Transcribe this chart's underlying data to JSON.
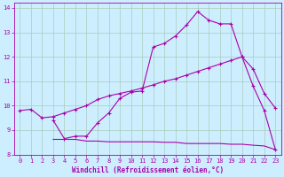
{
  "xlabel": "Windchill (Refroidissement éolien,°C)",
  "bg_color": "#cceeff",
  "grid_color": "#aaccbb",
  "line_color": "#aa00aa",
  "xlim": [
    -0.5,
    23.5
  ],
  "ylim": [
    8,
    14.2
  ],
  "xticks": [
    0,
    1,
    2,
    3,
    4,
    5,
    6,
    7,
    8,
    9,
    10,
    11,
    12,
    13,
    14,
    15,
    16,
    17,
    18,
    19,
    20,
    21,
    22,
    23
  ],
  "yticks": [
    8,
    9,
    10,
    11,
    12,
    13,
    14
  ],
  "line1_x": [
    0,
    1,
    2,
    3,
    4,
    5,
    6,
    7,
    8,
    9,
    10,
    11,
    12,
    13,
    14,
    15,
    16,
    17,
    18,
    19,
    20,
    21,
    22,
    23
  ],
  "line1_y": [
    9.8,
    9.85,
    9.5,
    9.55,
    9.7,
    9.85,
    10.0,
    10.25,
    10.4,
    10.5,
    10.6,
    10.72,
    10.85,
    11.0,
    11.1,
    11.25,
    11.4,
    11.55,
    11.7,
    11.85,
    12.0,
    11.5,
    10.5,
    9.9
  ],
  "line2_x": [
    3,
    4,
    5,
    6,
    7,
    8,
    9,
    10,
    11,
    12,
    13,
    14,
    15,
    16,
    17,
    18,
    19,
    20,
    21,
    22,
    23
  ],
  "line2_y": [
    9.4,
    8.65,
    8.75,
    8.75,
    9.3,
    9.7,
    10.3,
    10.55,
    10.6,
    12.4,
    12.55,
    12.85,
    13.3,
    13.85,
    13.5,
    13.35,
    13.35,
    12.0,
    10.8,
    9.8,
    8.2
  ],
  "line3_x": [
    3,
    4,
    5,
    6,
    7,
    8,
    9,
    10,
    11,
    12,
    13,
    14,
    15,
    16,
    17,
    18,
    19,
    20,
    21,
    22,
    23
  ],
  "line3_y": [
    8.62,
    8.62,
    8.62,
    8.55,
    8.55,
    8.52,
    8.52,
    8.52,
    8.52,
    8.52,
    8.5,
    8.5,
    8.45,
    8.45,
    8.45,
    8.45,
    8.42,
    8.42,
    8.38,
    8.35,
    8.2
  ],
  "marker_size": 3,
  "lw": 0.8,
  "xlabel_fontsize": 5.5,
  "tick_fontsize": 5
}
